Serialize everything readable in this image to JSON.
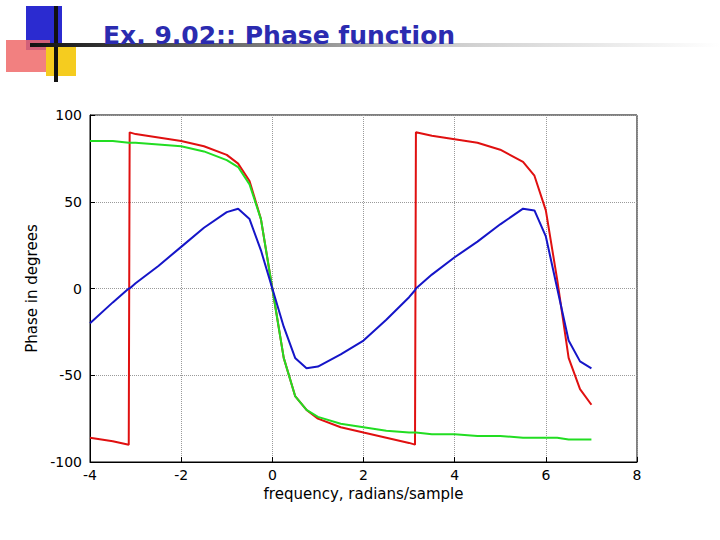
{
  "chart_data": {
    "type": "line",
    "title": "Ex. 9.02:: Phase function",
    "x_label": "frequency, radians/sample",
    "y_label": "Phase in degrees",
    "x": [
      -4,
      -3.5,
      -3.15,
      -3.13,
      -3,
      -2.5,
      -2,
      -1.5,
      -1,
      -0.75,
      -0.5,
      -0.25,
      0,
      0.25,
      0.5,
      0.75,
      1,
      1.5,
      2,
      2.5,
      3,
      3.13,
      3.15,
      3.5,
      4,
      4.5,
      5,
      5.5,
      5.75,
      6,
      6.25,
      6.5,
      6.75,
      7
    ],
    "series": [
      {
        "color": "#e01010",
        "values": [
          -86,
          -88,
          -90,
          90,
          89,
          87,
          85,
          82,
          77,
          72,
          62,
          40,
          0,
          -40,
          -62,
          -70,
          -75,
          -80,
          -83,
          -86,
          -89,
          -90,
          90,
          88,
          86,
          84,
          80,
          73,
          65,
          45,
          5,
          -40,
          -58,
          -67
        ]
      },
      {
        "color": "#22dd22",
        "values": [
          85,
          85,
          84,
          84,
          84,
          83,
          82,
          79,
          74,
          70,
          60,
          40,
          0,
          -40,
          -62,
          -70,
          -74,
          -78,
          -80,
          -82,
          -83,
          -83,
          -83,
          -84,
          -84,
          -85,
          -85,
          -86,
          -86,
          -86,
          -86,
          -87,
          -87,
          -87
        ]
      },
      {
        "color": "#1515c8",
        "values": [
          -20,
          -8,
          0,
          0,
          3,
          13,
          24,
          35,
          44,
          46,
          40,
          22,
          0,
          -22,
          -40,
          -46,
          -45,
          -38,
          -30,
          -18,
          -5,
          -1,
          0,
          8,
          18,
          27,
          37,
          46,
          45,
          30,
          0,
          -30,
          -42,
          -46
        ]
      }
    ],
    "xlim": [
      -4,
      8
    ],
    "xticks": [
      -4,
      -2,
      0,
      2,
      4,
      6,
      8
    ],
    "ylim": [
      -100,
      100
    ],
    "yticks": [
      -100,
      -50,
      0,
      50,
      100
    ],
    "grid": true
  }
}
